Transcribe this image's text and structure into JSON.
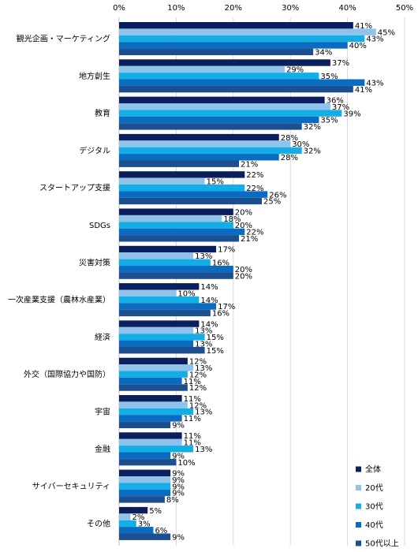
{
  "chart_data": {
    "type": "bar",
    "orientation": "horizontal",
    "categories": [
      "観光企画・マーケティング",
      "地方創生",
      "教育",
      "デジタル",
      "スタートアップ支援",
      "SDGs",
      "災害対策",
      "一次産業支援（農林水産業）",
      "経済",
      "外交（国際協力や国防）",
      "宇宙",
      "金融",
      "サイバーセキュリティ",
      "その他"
    ],
    "series": [
      {
        "name": "全体",
        "color": "#0b1f5e",
        "values": [
          41,
          37,
          36,
          28,
          22,
          20,
          17,
          14,
          14,
          12,
          11,
          11,
          9,
          5
        ]
      },
      {
        "name": "20代",
        "color": "#8fc3ea",
        "values": [
          45,
          29,
          37,
          30,
          15,
          18,
          13,
          10,
          13,
          13,
          12,
          11,
          9,
          2
        ]
      },
      {
        "name": "30代",
        "color": "#14aee6",
        "values": [
          43,
          35,
          39,
          32,
          22,
          20,
          16,
          14,
          15,
          12,
          13,
          13,
          9,
          3
        ]
      },
      {
        "name": "40代",
        "color": "#0a6cc0",
        "values": [
          40,
          43,
          35,
          28,
          26,
          22,
          20,
          17,
          13,
          11,
          11,
          9,
          9,
          6
        ]
      },
      {
        "name": "50代以上",
        "color": "#1c4f90",
        "values": [
          34,
          41,
          32,
          21,
          25,
          21,
          20,
          16,
          15,
          12,
          9,
          10,
          8,
          9
        ]
      }
    ],
    "value_suffix": "%",
    "xlim": [
      0,
      50
    ],
    "xticks": [
      "0%",
      "10%",
      "20%",
      "30%",
      "40%",
      "50%"
    ],
    "grid": true,
    "legend_position": "bottom-right"
  }
}
